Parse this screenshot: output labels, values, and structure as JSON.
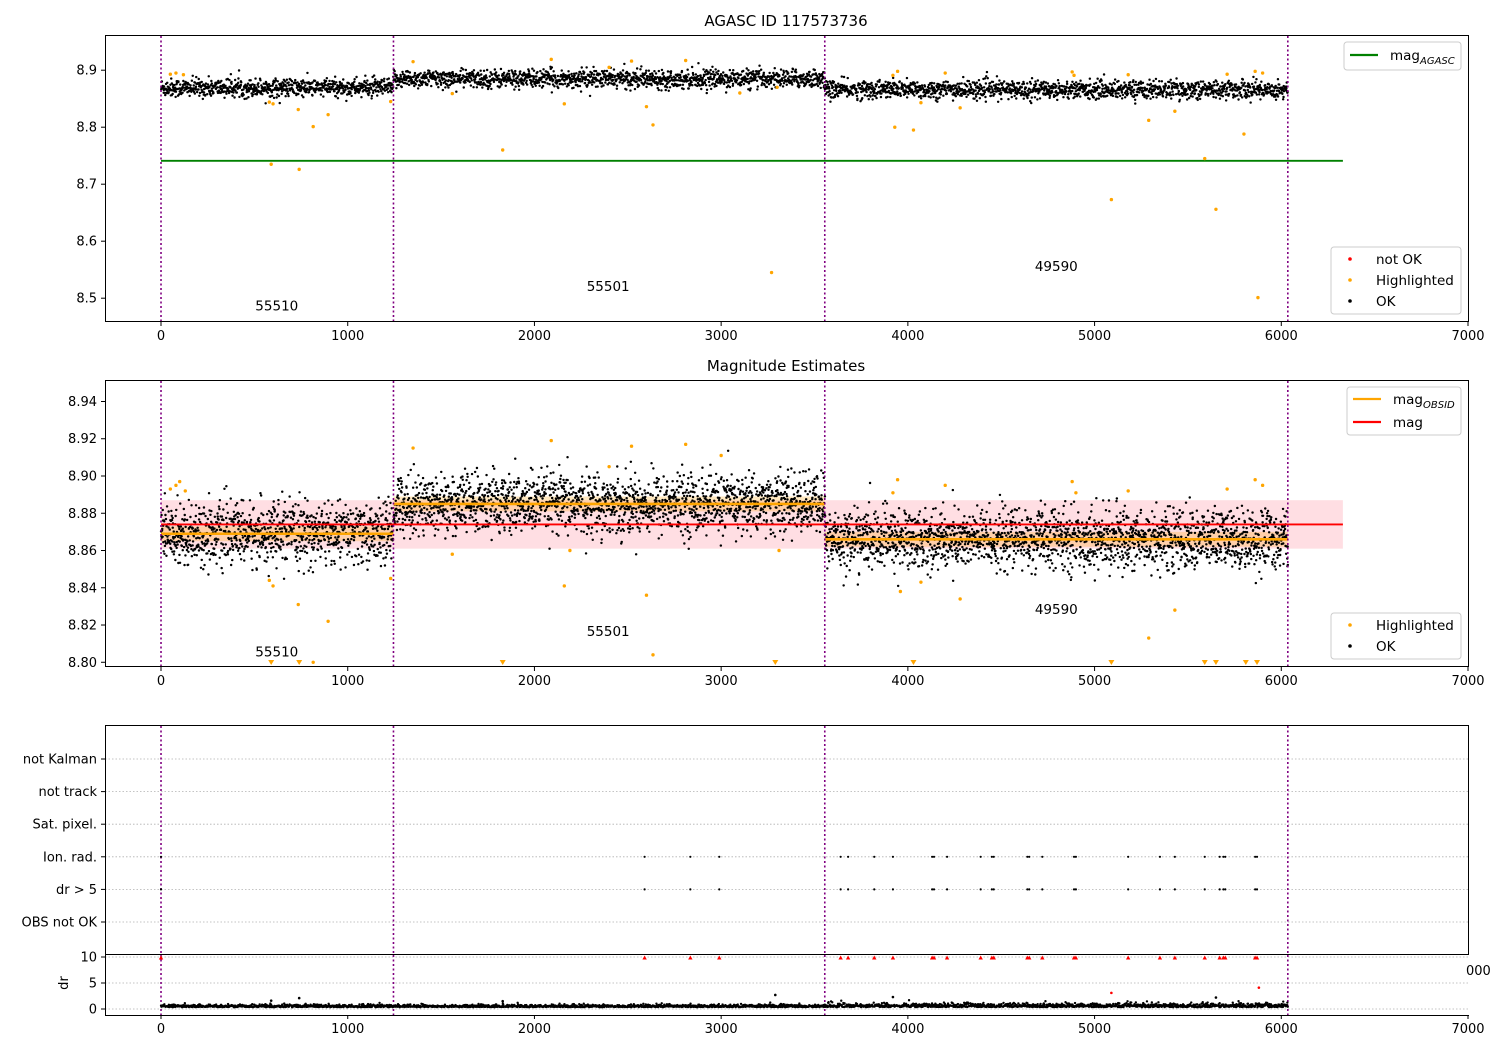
{
  "chart_data": [
    {
      "type": "scatter",
      "title": "AGASC ID 117573736",
      "xlim": [
        -300,
        7000
      ],
      "ylim": [
        8.46,
        8.96
      ],
      "xticks": [
        0,
        1000,
        2000,
        3000,
        4000,
        5000,
        6000,
        7000
      ],
      "yticks": [
        8.5,
        8.6,
        8.7,
        8.8,
        8.9
      ],
      "obsid_boundaries": [
        0,
        1245,
        3555,
        6035
      ],
      "obsid_labels": [
        {
          "text": "55510",
          "x": 620,
          "y": 8.478
        },
        {
          "text": "55501",
          "x": 2395,
          "y": 8.513
        },
        {
          "text": "49590",
          "x": 4795,
          "y": 8.548
        }
      ],
      "segments": [
        {
          "obsid": "55510",
          "x_start": 0,
          "x_end": 1245,
          "mean": 8.869
        },
        {
          "obsid": "55501",
          "x_start": 1245,
          "x_end": 3555,
          "mean": 8.885
        },
        {
          "obsid": "49590",
          "x_start": 3555,
          "x_end": 6035,
          "mean": 8.866
        }
      ],
      "point_noise": 0.008,
      "lines": [
        {
          "name": "mag_AGASC",
          "value": 8.741,
          "x_range": [
            0,
            6330
          ],
          "color": "#008000"
        }
      ],
      "highlighted": [
        {
          "x": 50,
          "y": 8.893
        },
        {
          "x": 80,
          "y": 8.895
        },
        {
          "x": 120,
          "y": 8.892
        },
        {
          "x": 580,
          "y": 8.844
        },
        {
          "x": 590,
          "y": 8.735
        },
        {
          "x": 600,
          "y": 8.841
        },
        {
          "x": 735,
          "y": 8.831
        },
        {
          "x": 740,
          "y": 8.726
        },
        {
          "x": 815,
          "y": 8.801
        },
        {
          "x": 895,
          "y": 8.822
        },
        {
          "x": 1230,
          "y": 8.845
        },
        {
          "x": 1350,
          "y": 8.915
        },
        {
          "x": 1560,
          "y": 8.859
        },
        {
          "x": 1830,
          "y": 8.76
        },
        {
          "x": 2090,
          "y": 8.919
        },
        {
          "x": 2160,
          "y": 8.841
        },
        {
          "x": 2400,
          "y": 8.905
        },
        {
          "x": 2520,
          "y": 8.916
        },
        {
          "x": 2600,
          "y": 8.836
        },
        {
          "x": 2635,
          "y": 8.804
        },
        {
          "x": 2810,
          "y": 8.917
        },
        {
          "x": 3270,
          "y": 8.545
        },
        {
          "x": 3100,
          "y": 8.86
        },
        {
          "x": 3300,
          "y": 8.87
        },
        {
          "x": 3920,
          "y": 8.891
        },
        {
          "x": 3930,
          "y": 8.8
        },
        {
          "x": 3945,
          "y": 8.898
        },
        {
          "x": 4030,
          "y": 8.795
        },
        {
          "x": 4070,
          "y": 8.843
        },
        {
          "x": 4200,
          "y": 8.895
        },
        {
          "x": 4280,
          "y": 8.834
        },
        {
          "x": 4880,
          "y": 8.897
        },
        {
          "x": 4890,
          "y": 8.891
        },
        {
          "x": 5090,
          "y": 8.673
        },
        {
          "x": 5180,
          "y": 8.892
        },
        {
          "x": 5290,
          "y": 8.812
        },
        {
          "x": 5430,
          "y": 8.828
        },
        {
          "x": 5590,
          "y": 8.745
        },
        {
          "x": 5650,
          "y": 8.656
        },
        {
          "x": 5710,
          "y": 8.893
        },
        {
          "x": 5800,
          "y": 8.788
        },
        {
          "x": 5860,
          "y": 8.898
        },
        {
          "x": 5875,
          "y": 8.501
        },
        {
          "x": 5900,
          "y": 8.895
        }
      ],
      "legend_upper": [
        {
          "label": "mag",
          "subscript": "AGASC",
          "color": "#008000",
          "marker": "line"
        }
      ],
      "legend_lower": [
        {
          "label": "not OK",
          "color": "#ff0000",
          "marker": "dot"
        },
        {
          "label": "Highlighted",
          "color": "#ffa500",
          "marker": "dot"
        },
        {
          "label": "OK",
          "color": "#000000",
          "marker": "dot"
        }
      ]
    },
    {
      "type": "scatter",
      "title": "Magnitude Estimates",
      "xlim": [
        -300,
        7000
      ],
      "ylim": [
        8.798,
        8.951
      ],
      "xticks": [
        0,
        1000,
        2000,
        3000,
        4000,
        5000,
        6000,
        7000
      ],
      "yticks": [
        8.8,
        8.82,
        8.84,
        8.86,
        8.88,
        8.9,
        8.92,
        8.94
      ],
      "obsid_boundaries": [
        0,
        1245,
        3555,
        6035
      ],
      "obsid_labels": [
        {
          "text": "55510",
          "x": 620,
          "y": 8.803
        },
        {
          "text": "55501",
          "x": 2395,
          "y": 8.814
        },
        {
          "text": "49590",
          "x": 4795,
          "y": 8.826
        }
      ],
      "segments": [
        {
          "obsid": "55510",
          "x_start": 0,
          "x_end": 1245,
          "mean": 8.869
        },
        {
          "obsid": "55501",
          "x_start": 1245,
          "x_end": 3555,
          "mean": 8.885
        },
        {
          "obsid": "49590",
          "x_start": 3555,
          "x_end": 6035,
          "mean": 8.866
        }
      ],
      "point_noise": 0.008,
      "mag": {
        "value": 8.874,
        "band": [
          8.861,
          8.887
        ],
        "x_range": [
          0,
          6330
        ],
        "color": "#ff0000"
      },
      "obsid_mag_color": "#ffa500",
      "clipped_markers_x": [
        590,
        740,
        1830,
        3290,
        4030,
        5090,
        5590,
        5650,
        5810,
        5870
      ],
      "highlighted": [
        {
          "x": 50,
          "y": 8.893
        },
        {
          "x": 80,
          "y": 8.895
        },
        {
          "x": 100,
          "y": 8.897
        },
        {
          "x": 130,
          "y": 8.892
        },
        {
          "x": 580,
          "y": 8.844
        },
        {
          "x": 600,
          "y": 8.841
        },
        {
          "x": 735,
          "y": 8.831
        },
        {
          "x": 815,
          "y": 8.8
        },
        {
          "x": 895,
          "y": 8.822
        },
        {
          "x": 1230,
          "y": 8.845
        },
        {
          "x": 1350,
          "y": 8.915
        },
        {
          "x": 1560,
          "y": 8.858
        },
        {
          "x": 2090,
          "y": 8.919
        },
        {
          "x": 2160,
          "y": 8.841
        },
        {
          "x": 2190,
          "y": 8.86
        },
        {
          "x": 2400,
          "y": 8.905
        },
        {
          "x": 2520,
          "y": 8.916
        },
        {
          "x": 2600,
          "y": 8.836
        },
        {
          "x": 2635,
          "y": 8.804
        },
        {
          "x": 2810,
          "y": 8.917
        },
        {
          "x": 3000,
          "y": 8.911
        },
        {
          "x": 3310,
          "y": 8.86
        },
        {
          "x": 3920,
          "y": 8.891
        },
        {
          "x": 3945,
          "y": 8.898
        },
        {
          "x": 3960,
          "y": 8.838
        },
        {
          "x": 4070,
          "y": 8.843
        },
        {
          "x": 4200,
          "y": 8.895
        },
        {
          "x": 4280,
          "y": 8.834
        },
        {
          "x": 4880,
          "y": 8.897
        },
        {
          "x": 4900,
          "y": 8.891
        },
        {
          "x": 5180,
          "y": 8.892
        },
        {
          "x": 5290,
          "y": 8.813
        },
        {
          "x": 5430,
          "y": 8.828
        },
        {
          "x": 5710,
          "y": 8.893
        },
        {
          "x": 5860,
          "y": 8.898
        },
        {
          "x": 5900,
          "y": 8.895
        }
      ],
      "legend_upper": [
        {
          "label": "mag",
          "subscript": "OBSID",
          "color": "#ffa500",
          "marker": "line"
        },
        {
          "label": "mag",
          "subscript": "",
          "color": "#ff0000",
          "marker": "line"
        }
      ],
      "legend_lower": [
        {
          "label": "Highlighted",
          "color": "#ffa500",
          "marker": "dot"
        },
        {
          "label": "OK",
          "color": "#000000",
          "marker": "dot"
        }
      ]
    },
    {
      "type": "scatter",
      "title": "",
      "xlim": [
        -300,
        7000
      ],
      "flag_categories": [
        "not Kalman",
        "not track",
        "Sat. pixel.",
        "Ion. rad.",
        "dr > 5",
        "OBS not OK"
      ],
      "obsid_boundaries": [
        0,
        1245,
        3555,
        6035
      ],
      "flag_events": [
        {
          "flag": "Ion. rad.",
          "x": [
            0,
            2590,
            2835,
            2990,
            3640,
            3680,
            3820,
            3920,
            4130,
            4140,
            4210,
            4390,
            4450,
            4460,
            4640,
            4650,
            4720,
            4890,
            4900,
            5180,
            5350,
            5430,
            5590,
            5670,
            5690,
            5700,
            5860,
            5870
          ]
        },
        {
          "flag": "dr > 5",
          "x": [
            0,
            2590,
            2835,
            2990,
            3640,
            3680,
            3820,
            3920,
            4130,
            4140,
            4210,
            4390,
            4450,
            4460,
            4640,
            4650,
            4720,
            4890,
            4900,
            5180,
            5350,
            5430,
            5590,
            5670,
            5690,
            5700,
            5860,
            5870
          ]
        }
      ]
    },
    {
      "type": "scatter",
      "ylabel": "dr",
      "xlim": [
        -300,
        7000
      ],
      "ylim": [
        -0.5,
        10.5
      ],
      "xticks": [
        0,
        1000,
        2000,
        3000,
        4000,
        5000,
        6000,
        7000
      ],
      "yticks": [
        0,
        5,
        10
      ],
      "overflow_tick_label": "000",
      "obsid_boundaries": [
        0,
        1245,
        3555,
        6035
      ],
      "clipped_dr_x": [
        0,
        2590,
        2835,
        2990,
        3640,
        3680,
        3820,
        3920,
        4130,
        4140,
        4210,
        4390,
        4450,
        4460,
        4640,
        4650,
        4720,
        4890,
        4900,
        5180,
        5350,
        5430,
        5590,
        5670,
        5690,
        5700,
        5860,
        5870
      ],
      "outliers": [
        {
          "x": 590,
          "y": 1.6,
          "color": "#000000"
        },
        {
          "x": 740,
          "y": 2.1,
          "color": "#000000"
        },
        {
          "x": 1830,
          "y": 1.5,
          "color": "#000000"
        },
        {
          "x": 3290,
          "y": 2.7,
          "color": "#000000"
        },
        {
          "x": 3920,
          "y": 2.3,
          "color": "#000000"
        },
        {
          "x": 5090,
          "y": 3.1,
          "color": "#ff0000"
        },
        {
          "x": 5650,
          "y": 2.2,
          "color": "#000000"
        },
        {
          "x": 5880,
          "y": 4.1,
          "color": "#ff0000"
        }
      ],
      "baseline": {
        "mean": 0.35,
        "noise": 0.25
      }
    }
  ]
}
